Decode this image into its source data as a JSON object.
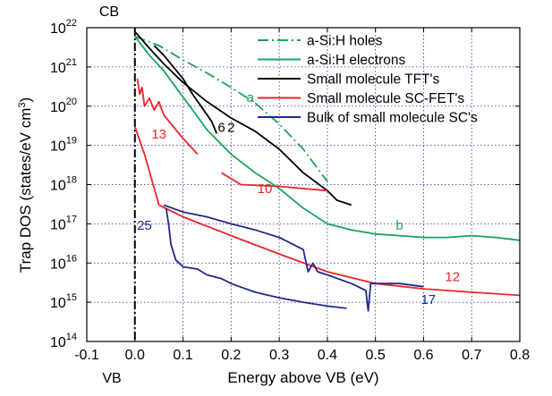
{
  "chart_data": {
    "type": "line",
    "title": "",
    "xlabel": "Energy above VB (eV)",
    "ylabel_main": "Trap DOS (states/eV cm",
    "ylabel_sup": "3",
    "ylabel_tail": ")",
    "y_scale": "log",
    "xlim": [
      -0.1,
      0.8
    ],
    "ylim": [
      100000000000000.0,
      1e+22
    ],
    "x_ticks": [
      -0.1,
      0.0,
      0.1,
      0.2,
      0.3,
      0.4,
      0.5,
      0.6,
      0.7,
      0.8
    ],
    "x_tick_labels": [
      "-0.1",
      "0.0",
      "0.1",
      "0.2",
      "0.3",
      "0.4",
      "0.5",
      "0.6",
      "0.7",
      "0.8"
    ],
    "y_ticks": [
      {
        "base": "10",
        "exp": "14",
        "value": 100000000000000.0
      },
      {
        "base": "10",
        "exp": "15",
        "value": 1000000000000000.0
      },
      {
        "base": "10",
        "exp": "16",
        "value": 1e+16
      },
      {
        "base": "10",
        "exp": "17",
        "value": 1e+17
      },
      {
        "base": "10",
        "exp": "18",
        "value": 1e+18
      },
      {
        "base": "10",
        "exp": "19",
        "value": 1e+19
      },
      {
        "base": "10",
        "exp": "20",
        "value": 1e+20
      },
      {
        "base": "10",
        "exp": "21",
        "value": 1e+21
      },
      {
        "base": "10",
        "exp": "22",
        "value": 1e+22
      }
    ],
    "grid": "dotted",
    "edge_labels": {
      "top": "CB",
      "bottom": "VB"
    },
    "legend": {
      "placement": "top-right",
      "entries": [
        {
          "label": "a-Si:H holes",
          "color": "#1aa35a",
          "style": "dashdot"
        },
        {
          "label": "a-Si:H electrons",
          "color": "#1aa35a",
          "style": "solid"
        },
        {
          "label": "Small molecule TFT's",
          "color": "#000000",
          "style": "solid"
        },
        {
          "label": "Small molecule SC-FET's",
          "color": "#e8262a",
          "style": "solid"
        },
        {
          "label": "Bulk of small molecule SC's",
          "color": "#1f2a8a",
          "style": "solid"
        }
      ]
    },
    "series": [
      {
        "id": "asih_holes",
        "color": "#1aa35a",
        "style": "dashdot",
        "points": [
          [
            0.0,
            6e+21
          ],
          [
            0.05,
            3.5e+21
          ],
          [
            0.1,
            1.5e+21
          ],
          [
            0.15,
            7e+20
          ],
          [
            0.2,
            3e+20
          ],
          [
            0.25,
            1.2e+20
          ],
          [
            0.3,
            3.5e+19
          ],
          [
            0.35,
            8e+18
          ],
          [
            0.4,
            1.2e+18
          ]
        ]
      },
      {
        "id": "asih_electrons",
        "color": "#1aa35a",
        "style": "solid",
        "points": [
          [
            0.0,
            6e+21
          ],
          [
            0.03,
            2e+21
          ],
          [
            0.06,
            8e+20
          ],
          [
            0.09,
            2.5e+20
          ],
          [
            0.12,
            8e+19
          ],
          [
            0.15,
            2.5e+19
          ],
          [
            0.2,
            6e+18
          ],
          [
            0.25,
            2e+18
          ],
          [
            0.3,
            8e+17
          ],
          [
            0.35,
            2.5e+17
          ],
          [
            0.4,
            1e+17
          ],
          [
            0.45,
            7e+16
          ],
          [
            0.5,
            5.5e+16
          ],
          [
            0.55,
            5e+16
          ],
          [
            0.6,
            4.5e+16
          ],
          [
            0.65,
            4.5e+16
          ],
          [
            0.7,
            5e+16
          ],
          [
            0.75,
            4.5e+16
          ],
          [
            0.8,
            3.8e+16
          ]
        ]
      },
      {
        "id": "tft_curve_2",
        "color": "#000000",
        "style": "solid",
        "points": [
          [
            0.0,
            8e+21
          ],
          [
            0.03,
            3e+21
          ],
          [
            0.06,
            1.2e+21
          ],
          [
            0.1,
            4e+20
          ],
          [
            0.15,
            1.3e+20
          ],
          [
            0.2,
            5e+19
          ],
          [
            0.25,
            2.3e+19
          ],
          [
            0.3,
            8e+18
          ],
          [
            0.35,
            2e+18
          ],
          [
            0.4,
            7e+17
          ],
          [
            0.42,
            4e+17
          ],
          [
            0.45,
            3e+17
          ]
        ]
      },
      {
        "id": "tft_curve_6",
        "color": "#000000",
        "style": "solid",
        "points": [
          [
            0.04,
            3.5e+21
          ],
          [
            0.06,
            2e+21
          ],
          [
            0.08,
            1e+21
          ],
          [
            0.1,
            5e+20
          ],
          [
            0.12,
            2e+20
          ],
          [
            0.14,
            9e+19
          ],
          [
            0.16,
            4e+19
          ],
          [
            0.17,
            2e+19
          ]
        ]
      },
      {
        "id": "scfet_curve_13",
        "color": "#e8262a",
        "style": "solid",
        "points": [
          [
            0.005,
            5e+20
          ],
          [
            0.01,
            2e+20
          ],
          [
            0.015,
            3e+20
          ],
          [
            0.02,
            1e+20
          ],
          [
            0.03,
            1.6e+20
          ],
          [
            0.04,
            8e+19
          ],
          [
            0.05,
            1.3e+20
          ],
          [
            0.06,
            6e+19
          ],
          [
            0.08,
            3e+19
          ],
          [
            0.1,
            1.5e+19
          ],
          [
            0.13,
            6e+18
          ]
        ]
      },
      {
        "id": "scfet_curve_10",
        "color": "#e8262a",
        "style": "solid",
        "points": [
          [
            0.18,
            2e+18
          ],
          [
            0.22,
            1e+18
          ],
          [
            0.3,
            9e+17
          ],
          [
            0.4,
            7e+17
          ]
        ]
      },
      {
        "id": "scfet_curve_12",
        "color": "#e8262a",
        "style": "solid",
        "points": [
          [
            0.0,
            3e+19
          ],
          [
            0.02,
            6e+18
          ],
          [
            0.05,
            3e+17
          ],
          [
            0.1,
            1.5e+17
          ],
          [
            0.2,
            5e+16
          ],
          [
            0.3,
            1.7e+16
          ],
          [
            0.4,
            6000000000000000.0
          ],
          [
            0.5,
            3000000000000000.0
          ],
          [
            0.6,
            2200000000000000.0
          ],
          [
            0.7,
            1800000000000000.0
          ],
          [
            0.8,
            1500000000000000.0
          ]
        ]
      },
      {
        "id": "bulk_curve_17",
        "color": "#1f2a8a",
        "style": "solid",
        "points": [
          [
            0.06,
            3e+17
          ],
          [
            0.1,
            2e+17
          ],
          [
            0.15,
            1.5e+17
          ],
          [
            0.2,
            1e+17
          ],
          [
            0.25,
            7e+16
          ],
          [
            0.3,
            4.5e+16
          ],
          [
            0.35,
            2.2e+16
          ],
          [
            0.36,
            6000000000000000.0
          ],
          [
            0.37,
            1e+16
          ],
          [
            0.38,
            6000000000000000.0
          ],
          [
            0.4,
            5000000000000000.0
          ],
          [
            0.45,
            3000000000000000.0
          ],
          [
            0.48,
            2000000000000000.0
          ],
          [
            0.485,
            600000000000000.0
          ],
          [
            0.49,
            3000000000000000.0
          ],
          [
            0.55,
            3000000000000000.0
          ],
          [
            0.6,
            2500000000000000.0
          ]
        ]
      },
      {
        "id": "bulk_curve_25",
        "color": "#1f2a8a",
        "style": "solid",
        "points": [
          [
            0.065,
            2.5e+17
          ],
          [
            0.07,
            1e+17
          ],
          [
            0.075,
            3e+16
          ],
          [
            0.085,
            1.2e+16
          ],
          [
            0.1,
            8000000000000000.0
          ],
          [
            0.13,
            7000000000000000.0
          ],
          [
            0.15,
            5000000000000000.0
          ],
          [
            0.18,
            4000000000000000.0
          ],
          [
            0.2,
            3000000000000000.0
          ],
          [
            0.25,
            1800000000000000.0
          ],
          [
            0.3,
            1300000000000000.0
          ],
          [
            0.35,
            1000000000000000.0
          ],
          [
            0.4,
            800000000000000.0
          ],
          [
            0.44,
            700000000000000.0
          ]
        ]
      }
    ],
    "curve_labels": [
      {
        "text": "a",
        "color": "#1aa35a",
        "x": 0.24,
        "y": 1.3e+20
      },
      {
        "text": "b",
        "color": "#1aa35a",
        "x": 0.55,
        "y": 7e+16
      },
      {
        "text": "6",
        "color": "#000000",
        "x": 0.18,
        "y": 2.2e+19
      },
      {
        "text": "2",
        "color": "#000000",
        "x": 0.2,
        "y": 2.2e+19
      },
      {
        "text": "13",
        "color": "#e8262a",
        "x": 0.05,
        "y": 1.5e+19
      },
      {
        "text": "10",
        "color": "#e8262a",
        "x": 0.27,
        "y": 6e+17
      },
      {
        "text": "12",
        "color": "#e8262a",
        "x": 0.66,
        "y": 3500000000000000.0
      },
      {
        "text": "17",
        "color": "#1f2a8a",
        "x": 0.61,
        "y": 900000000000000.0
      },
      {
        "text": "25",
        "color": "#1f2a8a",
        "x": 0.02,
        "y": 7e+16
      }
    ]
  }
}
